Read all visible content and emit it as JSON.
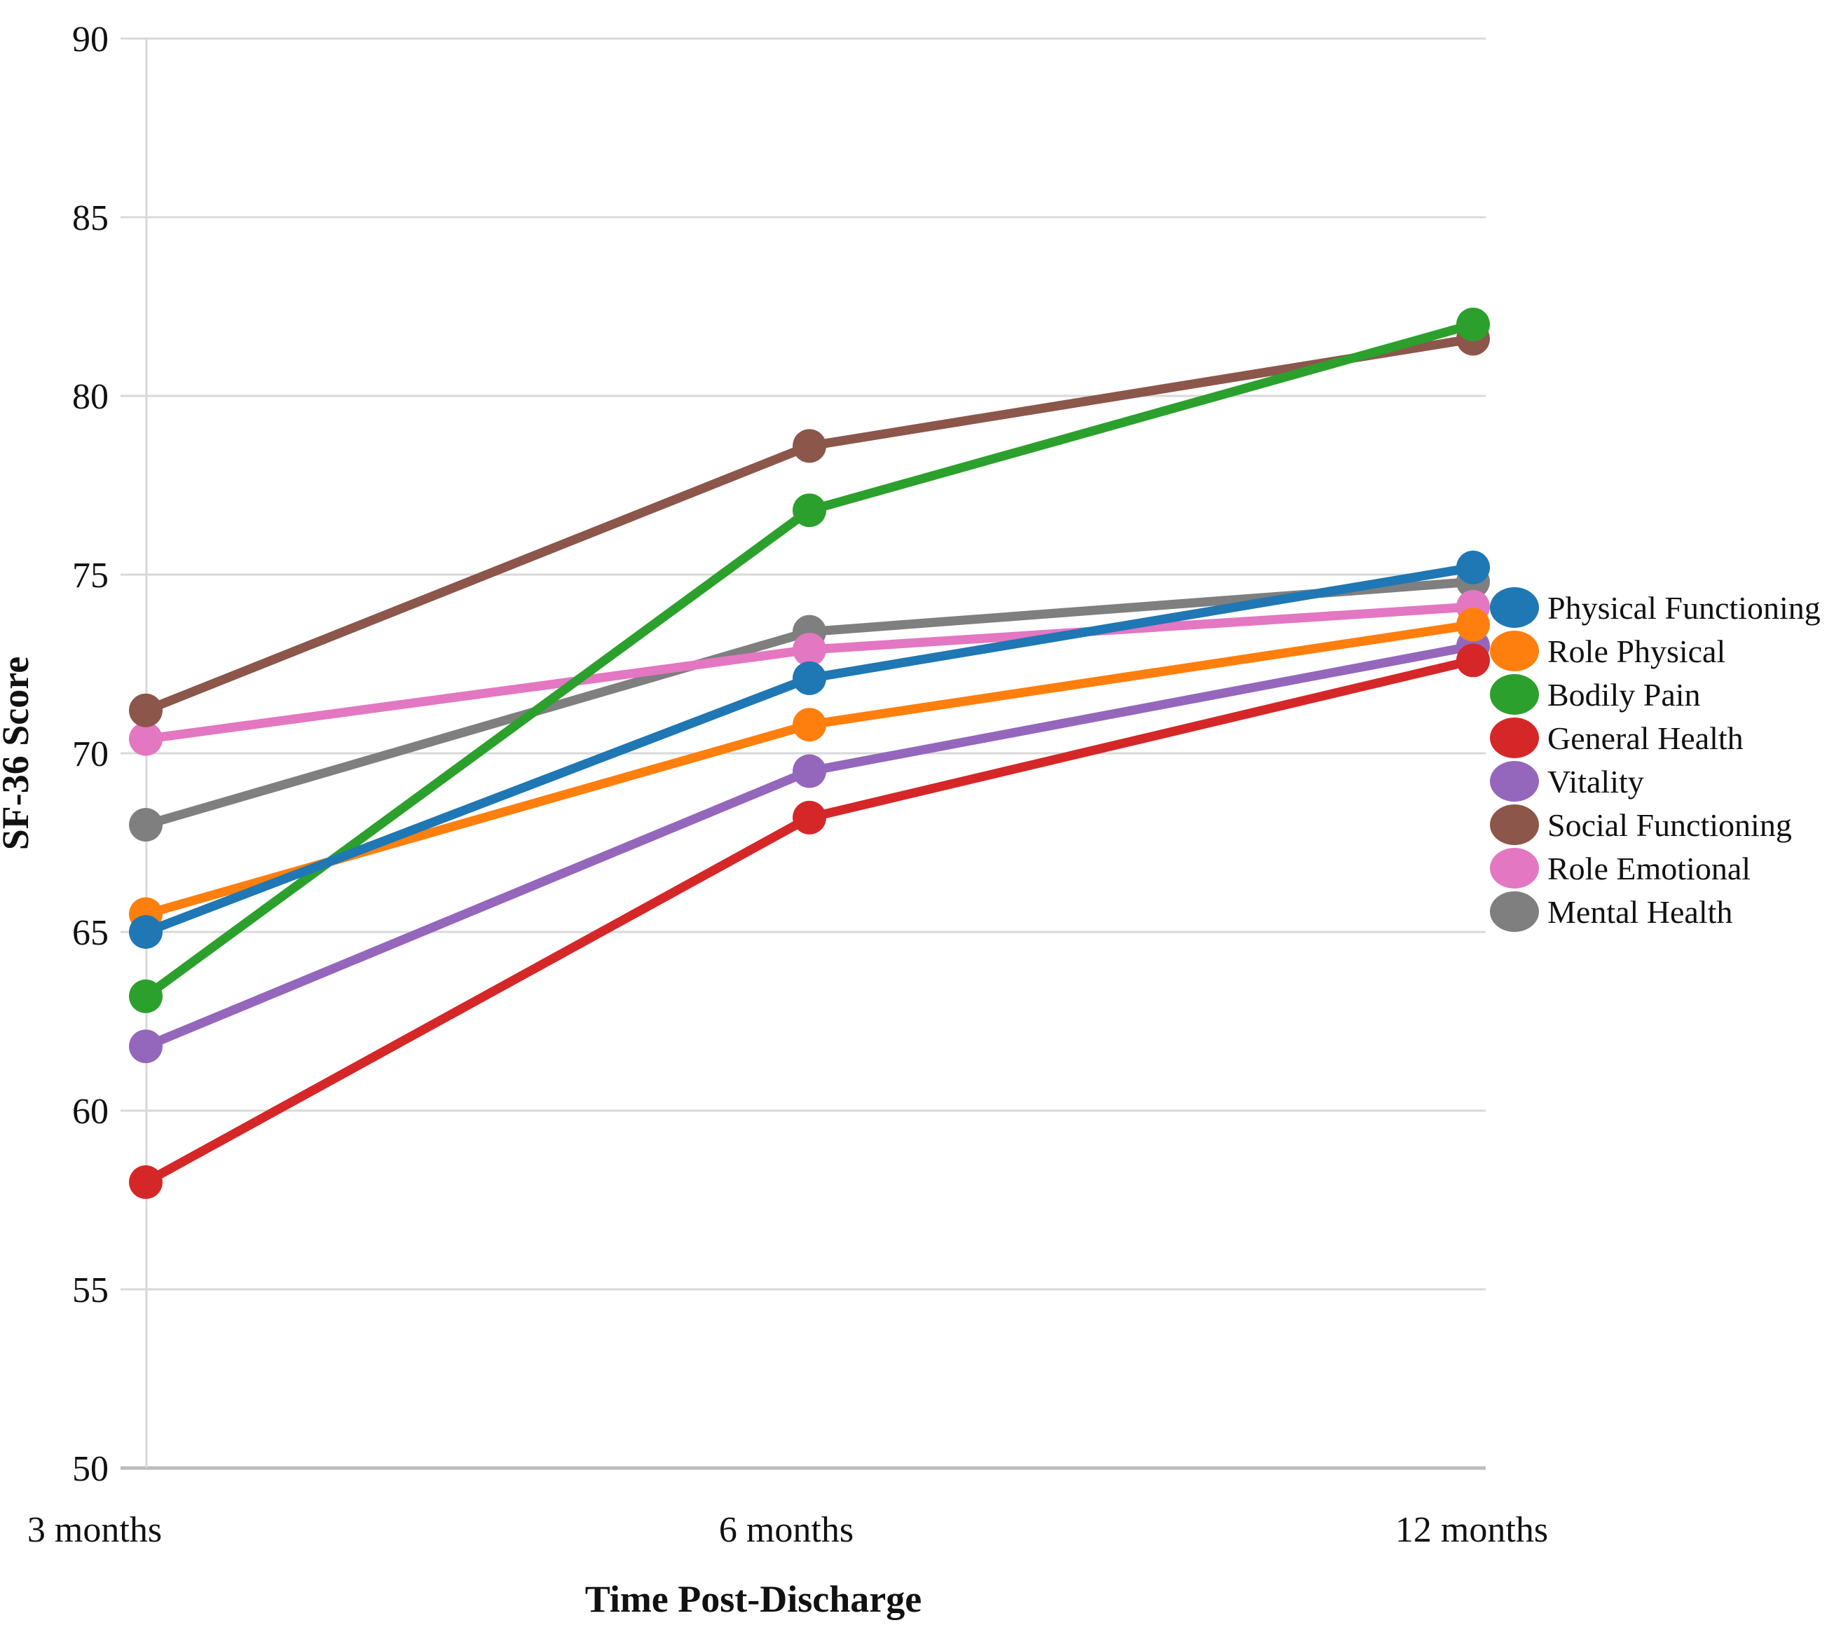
{
  "chart_data": {
    "type": "line",
    "title": "",
    "xlabel": "Time Post-Discharge",
    "ylabel": "SF-36 Score",
    "categories": [
      "3 months",
      "6 months",
      "12 months"
    ],
    "series": [
      {
        "name": "Physical Functioning",
        "color": "#1f77b4",
        "values": [
          65.0,
          72.1,
          75.2
        ]
      },
      {
        "name": "Role Physical",
        "color": "#ff7f0e",
        "values": [
          65.5,
          70.8,
          73.6
        ]
      },
      {
        "name": "Bodily Pain",
        "color": "#2ca02c",
        "values": [
          63.2,
          76.8,
          82.0
        ]
      },
      {
        "name": "General Health",
        "color": "#d62728",
        "values": [
          58.0,
          68.2,
          72.6
        ]
      },
      {
        "name": "Vitality",
        "color": "#9467bd",
        "values": [
          61.8,
          69.5,
          73.0
        ]
      },
      {
        "name": "Social Functioning",
        "color": "#8c564b",
        "values": [
          71.2,
          78.6,
          81.6
        ]
      },
      {
        "name": "Role Emotional",
        "color": "#e377c2",
        "values": [
          70.4,
          72.9,
          74.1
        ]
      },
      {
        "name": "Mental Health",
        "color": "#7f7f7f",
        "values": [
          68.0,
          73.4,
          74.8
        ]
      }
    ],
    "y_axis": {
      "min": 50,
      "max": 90,
      "step": 5,
      "tick_labels": [
        "50",
        "55",
        "60",
        "65",
        "70",
        "75",
        "80",
        "85",
        "90"
      ]
    },
    "legend_position": "right",
    "grid": "horizontal",
    "grid_color": "#d9d9d9",
    "baseline_color": "#bcbcbc",
    "text_color": "#111111"
  }
}
